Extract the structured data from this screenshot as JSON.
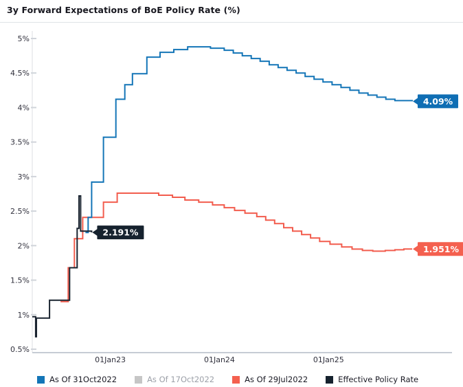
{
  "title": "3y Forward Expectations of BoE Policy Rate (%)",
  "chart_data": {
    "type": "line",
    "subtype": "step",
    "title": "3y Forward Expectations of BoE Policy Rate (%)",
    "xlabel": "",
    "ylabel": "",
    "grid": false,
    "legend_position": "bottom",
    "x_axis": {
      "range": [
        2022.285,
        2025.766
      ],
      "tick_years": [
        2023,
        2024,
        2025
      ],
      "tick_labels": [
        "01Jan23",
        "01Jan24",
        "01Jan25"
      ]
    },
    "y_axis": {
      "range": [
        0.5,
        5.0
      ],
      "tick_values": [
        5,
        4.5,
        4,
        3.5,
        3,
        2.5,
        2,
        1.5,
        1,
        0.5
      ],
      "tick_labels": [
        "5%",
        "4.5%",
        "4%",
        "3.5%",
        "3%",
        "2.5%",
        "2%",
        "1.5%",
        "1%",
        "0.5%"
      ],
      "suffix": "%"
    },
    "series": [
      {
        "id": "as-of-29jul2022",
        "name": "As Of 29Jul2022",
        "color": "#f25c4d",
        "label_bg": "#f4604f",
        "legend_color": "#f4604f",
        "visible": true,
        "end_label": "1.951%",
        "points": [
          [
            2022.544,
            1.19
          ],
          [
            2022.614,
            1.68
          ],
          [
            2022.671,
            2.1
          ],
          [
            2022.747,
            2.41
          ],
          [
            2022.937,
            2.63
          ],
          [
            2023.063,
            2.76
          ],
          [
            2023.443,
            2.73
          ],
          [
            2023.57,
            2.7
          ],
          [
            2023.684,
            2.66
          ],
          [
            2023.81,
            2.63
          ],
          [
            2023.937,
            2.59
          ],
          [
            2024.044,
            2.55
          ],
          [
            2024.139,
            2.51
          ],
          [
            2024.234,
            2.47
          ],
          [
            2024.342,
            2.42
          ],
          [
            2024.424,
            2.37
          ],
          [
            2024.506,
            2.32
          ],
          [
            2024.589,
            2.26
          ],
          [
            2024.671,
            2.21
          ],
          [
            2024.753,
            2.16
          ],
          [
            2024.835,
            2.11
          ],
          [
            2024.918,
            2.06
          ],
          [
            2025.013,
            2.02
          ],
          [
            2025.12,
            1.98
          ],
          [
            2025.215,
            1.95
          ],
          [
            2025.31,
            1.93
          ],
          [
            2025.405,
            1.92
          ],
          [
            2025.519,
            1.93
          ],
          [
            2025.608,
            1.94
          ],
          [
            2025.69,
            1.951
          ],
          [
            2025.766,
            1.951
          ]
        ]
      },
      {
        "id": "as-of-31oct2022",
        "name": "As Of 31Oct2022",
        "color": "#1375b7",
        "label_bg": "#0f6eb4",
        "legend_color": "#1375b7",
        "visible": true,
        "end_label": "4.09%",
        "points": [
          [
            2022.772,
            2.19
          ],
          [
            2022.797,
            2.41
          ],
          [
            2022.829,
            2.92
          ],
          [
            2022.937,
            3.57
          ],
          [
            2023.051,
            4.12
          ],
          [
            2023.133,
            4.33
          ],
          [
            2023.203,
            4.49
          ],
          [
            2023.335,
            4.73
          ],
          [
            2023.456,
            4.8
          ],
          [
            2023.582,
            4.84
          ],
          [
            2023.709,
            4.88
          ],
          [
            2023.918,
            4.86
          ],
          [
            2024.044,
            4.83
          ],
          [
            2024.127,
            4.79
          ],
          [
            2024.209,
            4.75
          ],
          [
            2024.291,
            4.71
          ],
          [
            2024.373,
            4.67
          ],
          [
            2024.456,
            4.62
          ],
          [
            2024.538,
            4.58
          ],
          [
            2024.62,
            4.54
          ],
          [
            2024.703,
            4.5
          ],
          [
            2024.785,
            4.45
          ],
          [
            2024.867,
            4.41
          ],
          [
            2024.949,
            4.37
          ],
          [
            2025.032,
            4.33
          ],
          [
            2025.114,
            4.29
          ],
          [
            2025.196,
            4.25
          ],
          [
            2025.278,
            4.21
          ],
          [
            2025.361,
            4.18
          ],
          [
            2025.443,
            4.15
          ],
          [
            2025.525,
            4.12
          ],
          [
            2025.608,
            4.1
          ],
          [
            2025.766,
            4.09
          ]
        ]
      },
      {
        "id": "effective-policy-rate",
        "name": "Effective Policy Rate",
        "color": "#1a2430",
        "label_bg": "#16222e",
        "legend_color": "#16222e",
        "visible": true,
        "end_label": "2.191%",
        "points": [
          [
            2022.285,
            0.97
          ],
          [
            2022.31,
            0.97
          ],
          [
            2022.316,
            0.68
          ],
          [
            2022.323,
            0.95
          ],
          [
            2022.443,
            1.21
          ],
          [
            2022.627,
            1.68
          ],
          [
            2022.696,
            2.25
          ],
          [
            2022.713,
            2.72
          ],
          [
            2022.728,
            2.21
          ],
          [
            2022.829,
            2.191
          ]
        ]
      },
      {
        "id": "as-of-17oct2022",
        "name": "As Of 17Oct2022",
        "color": "#c6c6c6",
        "label_bg": "#c6c6c6",
        "legend_color": "#c6c6c6",
        "visible": false,
        "end_label": "",
        "points": []
      }
    ],
    "legend_order": [
      "as-of-31oct2022",
      "as-of-17oct2022",
      "as-of-29jul2022",
      "effective-policy-rate"
    ]
  }
}
